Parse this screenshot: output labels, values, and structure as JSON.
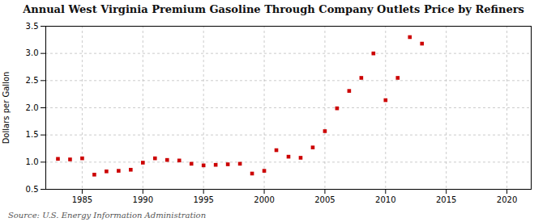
{
  "chart_data": {
    "type": "scatter",
    "title": "Annual West Virginia Premium Gasoline Through Company Outlets Price by Refiners",
    "ylabel": "Dollars per Gallon",
    "source": "Source: U.S. Energy Information Administration",
    "color": "#cc0000",
    "marker": "square",
    "grid": true,
    "xlim": [
      1982,
      2022
    ],
    "ylim": [
      0.5,
      3.5
    ],
    "xticks": [
      1985,
      1990,
      1995,
      2000,
      2005,
      2010,
      2015,
      2020
    ],
    "yticks": [
      0.5,
      {
        "value": 1.0,
        "label": "1.0"
      },
      1.5,
      {
        "value": 2.0,
        "label": "2.0"
      },
      2.5,
      {
        "value": 3.0,
        "label": "3.0"
      },
      3.5
    ],
    "x": [
      1983,
      1984,
      1985,
      1986,
      1987,
      1988,
      1989,
      1990,
      1991,
      1992,
      1993,
      1994,
      1995,
      1996,
      1997,
      1998,
      1999,
      2000,
      2001,
      2002,
      2003,
      2004,
      2005,
      2006,
      2007,
      2008,
      2009,
      2010,
      2011,
      2012,
      2013
    ],
    "values": [
      1.06,
      1.05,
      1.07,
      0.77,
      0.83,
      0.84,
      0.86,
      0.99,
      1.07,
      1.04,
      1.03,
      0.97,
      0.94,
      0.95,
      0.96,
      0.97,
      0.79,
      0.84,
      1.22,
      1.1,
      1.08,
      1.27,
      1.57,
      1.99,
      2.31,
      2.55,
      3.0,
      2.14,
      2.55,
      3.3,
      3.18
    ]
  }
}
